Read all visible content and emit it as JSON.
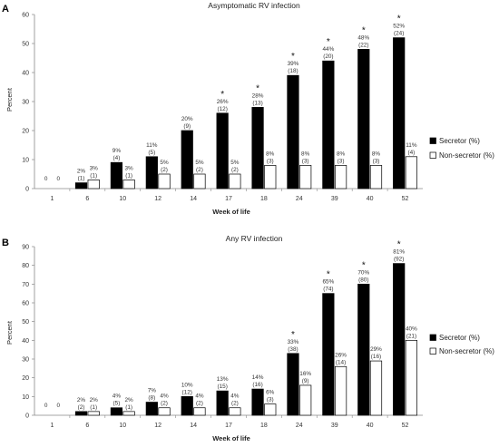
{
  "chart_data": [
    {
      "type": "bar",
      "panel_label": "A",
      "title": "Asymptomatic RV infection",
      "xlabel": "Week of life",
      "ylabel": "Percent",
      "ylim": [
        0,
        60
      ],
      "yticks": [
        0,
        10,
        20,
        30,
        40,
        50,
        60
      ],
      "categories": [
        "1",
        "6",
        "10",
        "12",
        "14",
        "17",
        "18",
        "24",
        "39",
        "40",
        "52"
      ],
      "legend_position": "right",
      "series": [
        {
          "name": "Secretor (%)",
          "color": "#000000",
          "values": [
            0,
            2,
            9,
            11,
            20,
            26,
            28,
            39,
            44,
            48,
            52
          ],
          "pct_labels": [
            "0",
            "2%",
            "9%",
            "11%",
            "20%",
            "26%",
            "28%",
            "39%",
            "44%",
            "48%",
            "52%"
          ],
          "n_labels": [
            "",
            "(1)",
            "(4)",
            "(5)",
            "(9)",
            "(12)",
            "(13)",
            "(18)",
            "(20)",
            "(22)",
            "(24)"
          ]
        },
        {
          "name": "Non-secretor (%)",
          "color": "#ffffff",
          "values": [
            0,
            3,
            3,
            5,
            5,
            5,
            8,
            8,
            8,
            8,
            11
          ],
          "pct_labels": [
            "0",
            "3%",
            "3%",
            "5%",
            "5%",
            "5%",
            "8%",
            "8%",
            "8%",
            "8%",
            "11%"
          ],
          "n_labels": [
            "",
            "(1)",
            "(1)",
            "(2)",
            "(2)",
            "(2)",
            "(3)",
            "(3)",
            "(3)",
            "(3)",
            "(4)"
          ]
        }
      ],
      "significance": [
        "",
        "",
        "",
        "",
        "",
        "*",
        "*",
        "*",
        "*",
        "*",
        "*"
      ]
    },
    {
      "type": "bar",
      "panel_label": "B",
      "title": "Any RV infection",
      "xlabel": "Week of life",
      "ylabel": "Percent",
      "ylim": [
        0,
        90
      ],
      "yticks": [
        0,
        10,
        20,
        30,
        40,
        50,
        60,
        70,
        80,
        90
      ],
      "categories": [
        "1",
        "6",
        "10",
        "12",
        "14",
        "17",
        "18",
        "24",
        "39",
        "40",
        "52"
      ],
      "legend_position": "right",
      "series": [
        {
          "name": "Secretor (%)",
          "color": "#000000",
          "values": [
            0,
            2,
            4,
            7,
            10,
            13,
            14,
            33,
            65,
            70,
            81
          ],
          "pct_labels": [
            "0",
            "2%",
            "4%",
            "7%",
            "10%",
            "13%",
            "14%",
            "33%",
            "65%",
            "70%",
            "81%"
          ],
          "n_labels": [
            "",
            "(2)",
            "(5)",
            "(8)",
            "(12)",
            "(15)",
            "(16)",
            "(38)",
            "(74)",
            "(80)",
            "(92)"
          ]
        },
        {
          "name": "Non-secretor (%)",
          "color": "#ffffff",
          "values": [
            0,
            2,
            2,
            4,
            4,
            4,
            6,
            16,
            26,
            29,
            40
          ],
          "pct_labels": [
            "0",
            "2%",
            "2%",
            "4%",
            "4%",
            "4%",
            "6%",
            "16%",
            "26%",
            "29%",
            "40%"
          ],
          "n_labels": [
            "",
            "(1)",
            "(1)",
            "(2)",
            "(2)",
            "(2)",
            "(3)",
            "(9)",
            "(14)",
            "(16)",
            "(21)"
          ]
        }
      ],
      "significance": [
        "",
        "",
        "",
        "",
        "",
        "",
        "",
        "*",
        "*",
        "*",
        "*"
      ]
    }
  ]
}
